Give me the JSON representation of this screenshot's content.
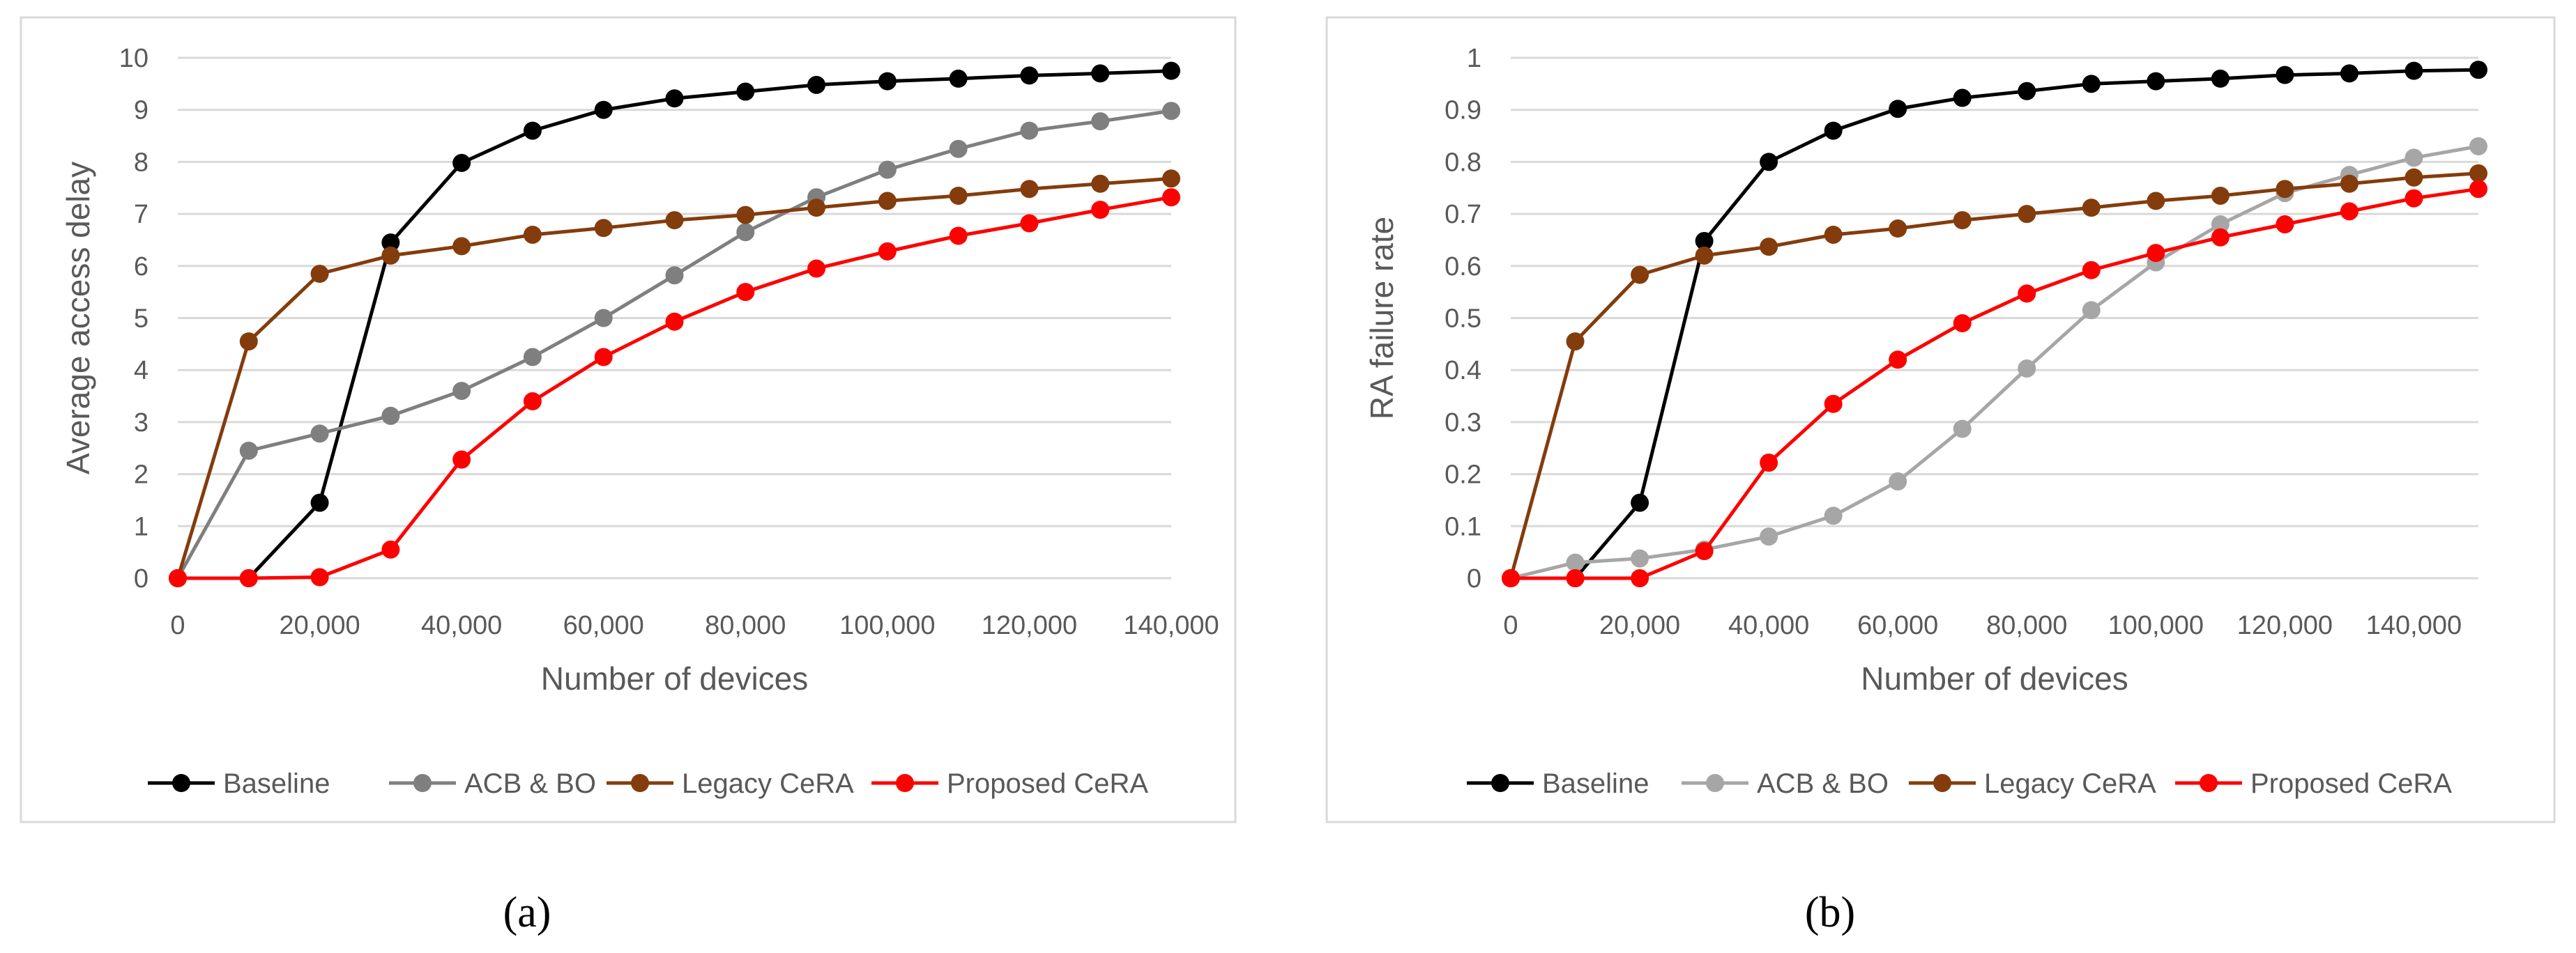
{
  "chart_data": [
    {
      "type": "line",
      "panel_label": "(a)",
      "title": "",
      "xlabel": "Number of devices",
      "ylabel": "Average access delay",
      "x": [
        0,
        10000,
        20000,
        30000,
        40000,
        50000,
        60000,
        70000,
        80000,
        90000,
        100000,
        110000,
        120000,
        130000,
        140000
      ],
      "x_tick_values": [
        0,
        20000,
        40000,
        60000,
        80000,
        100000,
        120000,
        140000
      ],
      "x_tick_labels": [
        "0",
        "20,000",
        "40,000",
        "60,000",
        "80,000",
        "100,000",
        "120,000",
        "140,000"
      ],
      "xlim": [
        0,
        140000
      ],
      "ylim": [
        0,
        10
      ],
      "y_tick_values": [
        0,
        1,
        2,
        3,
        4,
        5,
        6,
        7,
        8,
        9,
        10
      ],
      "y_tick_labels": [
        "0",
        "1",
        "2",
        "3",
        "4",
        "5",
        "6",
        "7",
        "8",
        "9",
        "10"
      ],
      "grid": true,
      "legend_position": "bottom",
      "series": [
        {
          "name": "Baseline",
          "color": "#000000",
          "values": [
            0,
            0,
            1.45,
            6.45,
            7.98,
            8.6,
            9.0,
            9.22,
            9.35,
            9.48,
            9.55,
            9.6,
            9.66,
            9.7,
            9.75
          ]
        },
        {
          "name": "ACB & BO",
          "color": "#7f7f7f",
          "values": [
            0,
            2.45,
            2.78,
            3.12,
            3.6,
            4.25,
            5.0,
            5.82,
            6.65,
            7.32,
            7.85,
            8.25,
            8.6,
            8.78,
            8.98
          ]
        },
        {
          "name": "Legacy CeRA",
          "color": "#843c0c",
          "values": [
            0,
            4.55,
            5.85,
            6.2,
            6.38,
            6.6,
            6.73,
            6.88,
            6.98,
            7.12,
            7.25,
            7.35,
            7.48,
            7.58,
            7.68
          ]
        },
        {
          "name": "Proposed CeRA",
          "color": "#ff0000",
          "values": [
            0,
            0,
            0.02,
            0.55,
            2.28,
            3.4,
            4.25,
            4.93,
            5.5,
            5.95,
            6.28,
            6.58,
            6.82,
            7.08,
            7.32
          ]
        }
      ]
    },
    {
      "type": "line",
      "panel_label": "(b)",
      "title": "",
      "xlabel": "Number of devices",
      "ylabel": "RA failure rate",
      "x": [
        0,
        10000,
        20000,
        30000,
        40000,
        50000,
        60000,
        70000,
        80000,
        90000,
        100000,
        110000,
        120000,
        130000,
        140000,
        150000
      ],
      "x_tick_values": [
        0,
        20000,
        40000,
        60000,
        80000,
        100000,
        120000,
        140000
      ],
      "x_tick_labels": [
        "0",
        "20,000",
        "40,000",
        "60,000",
        "80,000",
        "100,000",
        "120,000",
        "140,000"
      ],
      "xlim": [
        0,
        150000
      ],
      "ylim": [
        0,
        1
      ],
      "y_tick_values": [
        0,
        0.1,
        0.2,
        0.3,
        0.4,
        0.5,
        0.6,
        0.7,
        0.8,
        0.9,
        1
      ],
      "y_tick_labels": [
        "0",
        "0.1",
        "0.2",
        "0.3",
        "0.4",
        "0.5",
        "0.6",
        "0.7",
        "0.8",
        "0.9",
        "1"
      ],
      "grid": true,
      "legend_position": "bottom",
      "series": [
        {
          "name": "Baseline",
          "color": "#000000",
          "values": [
            0,
            0,
            0.145,
            0.648,
            0.8,
            0.86,
            0.902,
            0.923,
            0.936,
            0.95,
            0.955,
            0.96,
            0.967,
            0.97,
            0.975,
            0.977
          ]
        },
        {
          "name": "ACB & BO",
          "color": "#a6a6a6",
          "values": [
            0,
            0.03,
            0.038,
            0.055,
            0.08,
            0.12,
            0.186,
            0.287,
            0.403,
            0.515,
            0.607,
            0.68,
            0.74,
            0.775,
            0.808,
            0.83
          ]
        },
        {
          "name": "Legacy CeRA",
          "color": "#843c0c",
          "values": [
            0,
            0.455,
            0.583,
            0.62,
            0.637,
            0.66,
            0.672,
            0.688,
            0.7,
            0.712,
            0.725,
            0.735,
            0.748,
            0.758,
            0.77,
            0.778
          ]
        },
        {
          "name": "Proposed CeRA",
          "color": "#ff0000",
          "values": [
            0,
            0,
            0,
            0.052,
            0.222,
            0.335,
            0.42,
            0.49,
            0.547,
            0.592,
            0.625,
            0.655,
            0.68,
            0.705,
            0.73,
            0.748
          ]
        }
      ]
    }
  ]
}
